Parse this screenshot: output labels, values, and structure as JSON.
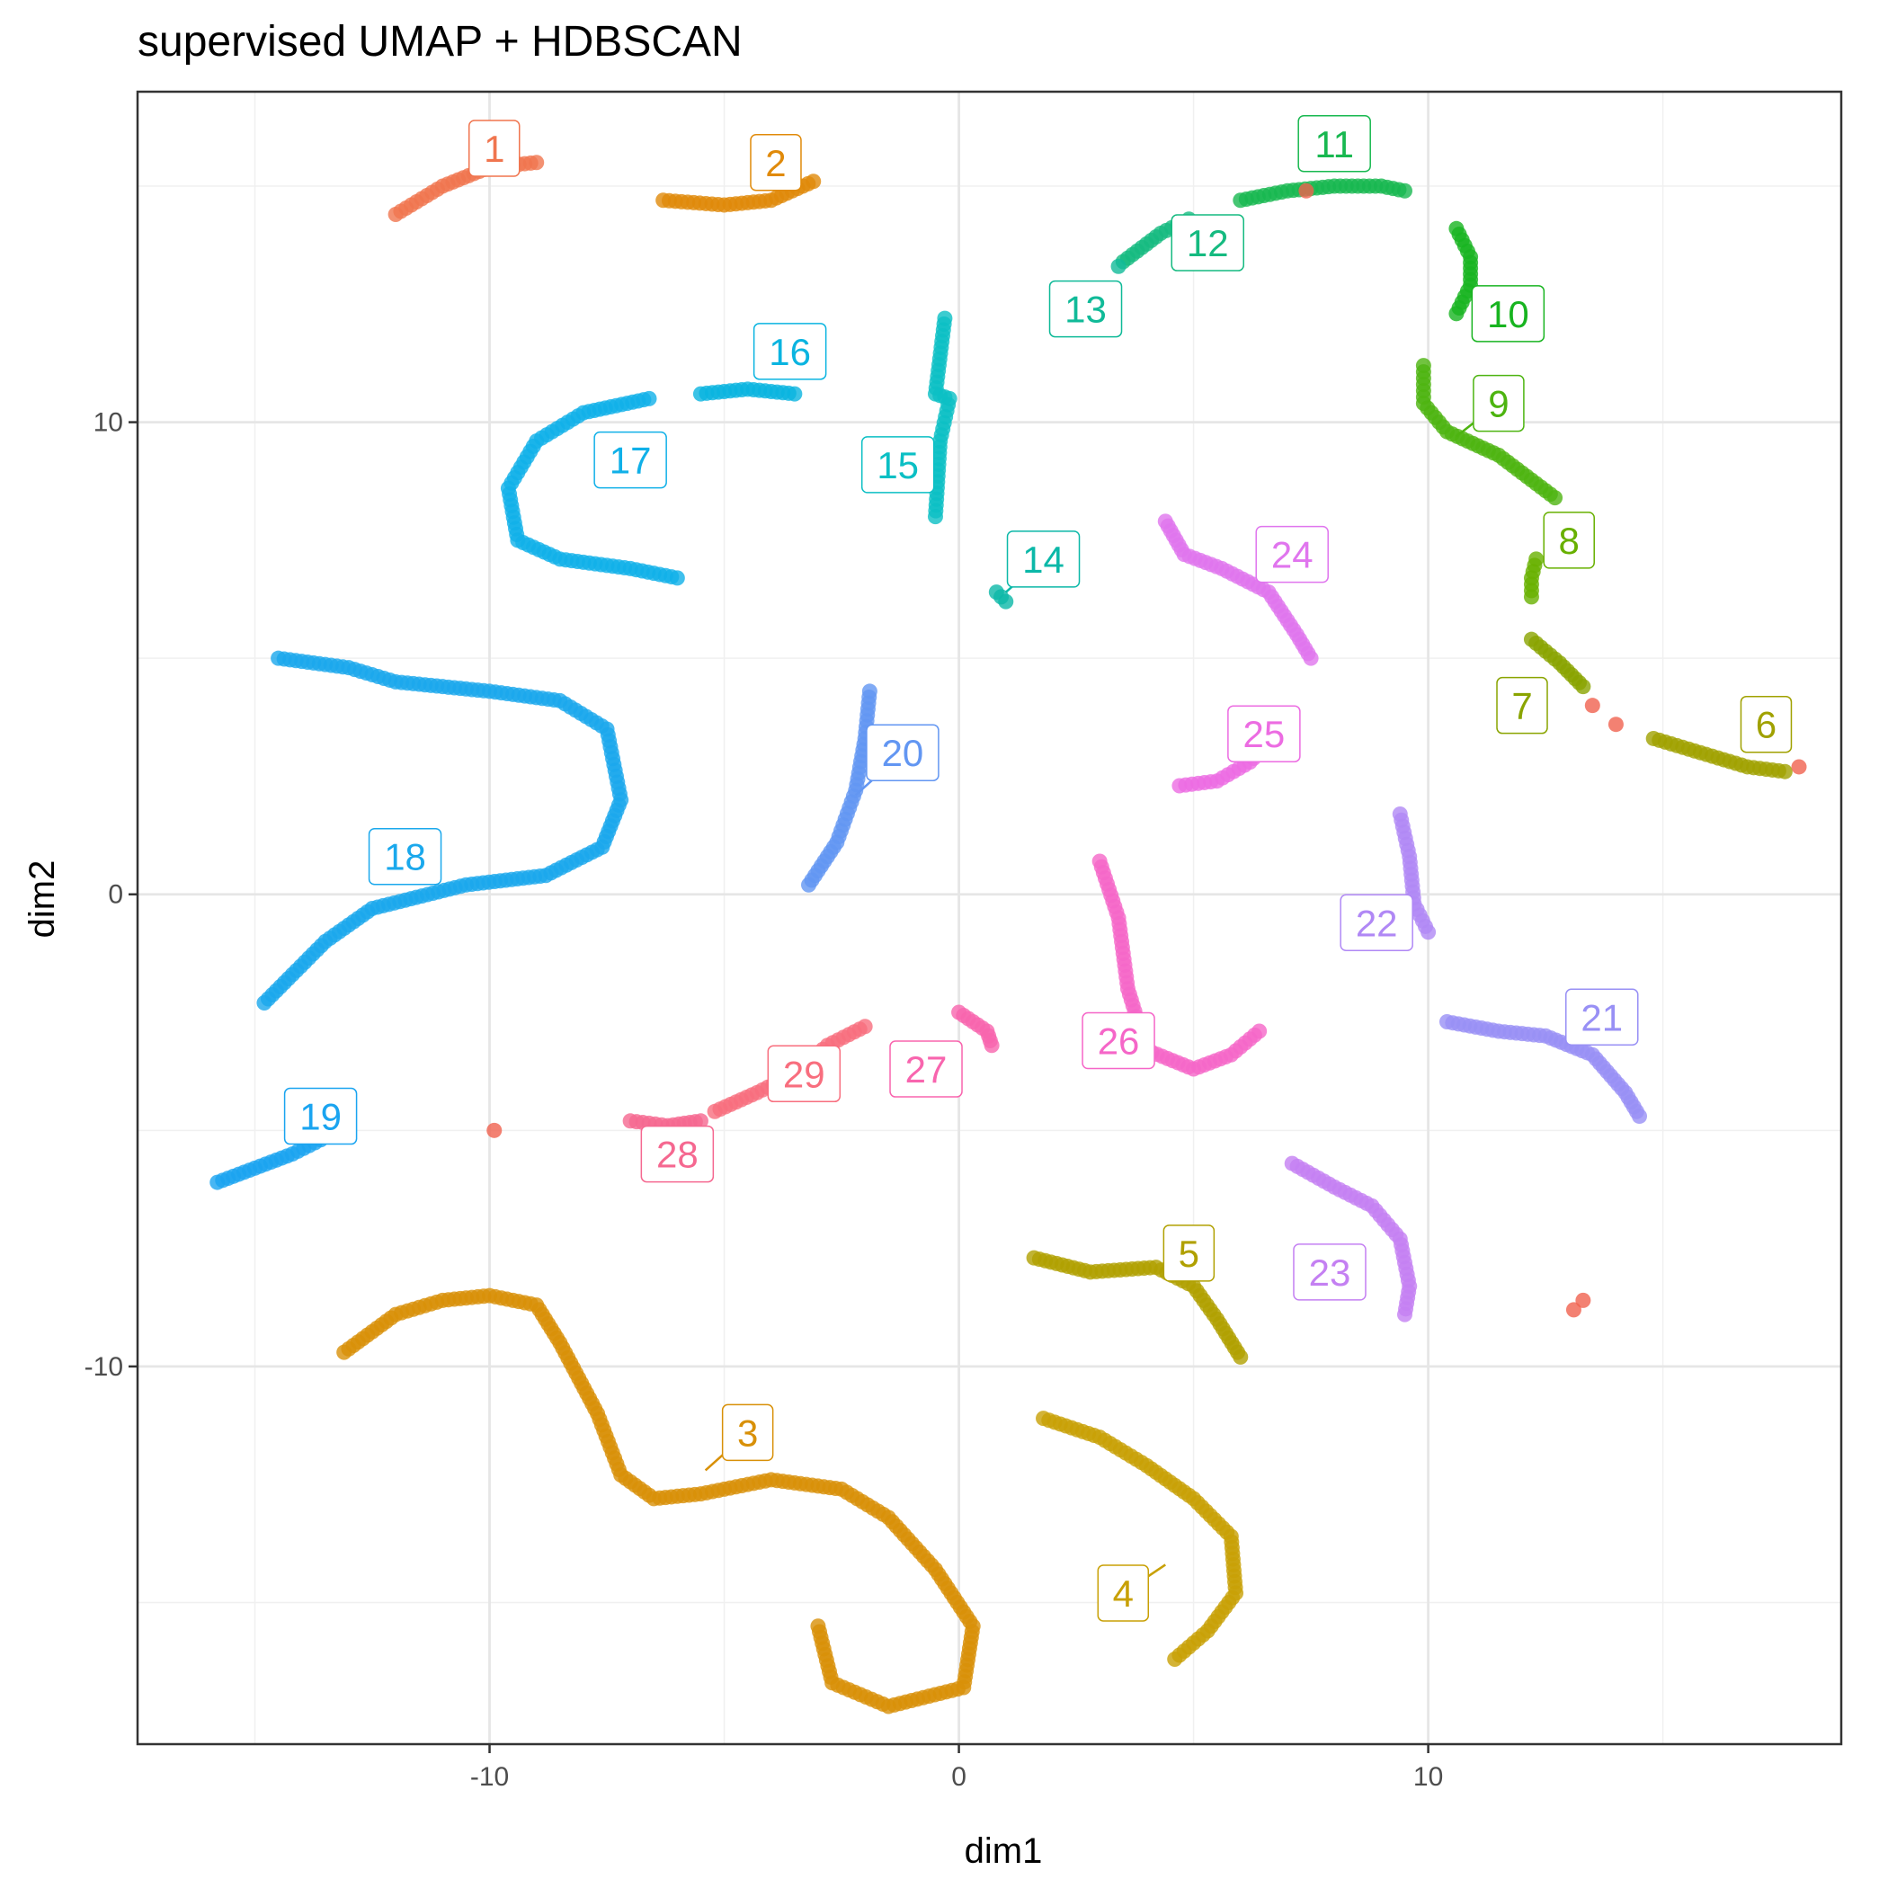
{
  "chart_data": {
    "type": "scatter",
    "title": "supervised UMAP + HDBSCAN",
    "xlabel": "dim1",
    "ylabel": "dim2",
    "xlim": [
      -17.5,
      18.8
    ],
    "ylim": [
      -18,
      17
    ],
    "x_ticks": [
      -10,
      0,
      10
    ],
    "x_tick_labels": [
      "-10",
      "0",
      "10"
    ],
    "y_ticks": [
      -10,
      0,
      10
    ],
    "y_tick_labels": [
      "-10",
      "0",
      "10"
    ],
    "x_minor_ticks": [
      -15,
      -5,
      5,
      15
    ],
    "y_minor_ticks": [
      -15,
      -5,
      5,
      15
    ],
    "grid": true,
    "legend": "none",
    "point_opacity": 0.8,
    "clusters": [
      {
        "label": "1",
        "color": "#F0754F",
        "label_pos": [
          -9.9,
          15.8
        ],
        "leader_to": null,
        "path": [
          [
            -12.0,
            14.4
          ],
          [
            -11.0,
            15.0
          ],
          [
            -10.0,
            15.4
          ],
          [
            -9.0,
            15.5
          ]
        ]
      },
      {
        "label": "2",
        "color": "#E08A0A",
        "label_pos": [
          -3.9,
          15.5
        ],
        "leader_to": null,
        "path": [
          [
            -6.3,
            14.7
          ],
          [
            -5.0,
            14.6
          ],
          [
            -4.0,
            14.7
          ],
          [
            -3.1,
            15.1
          ]
        ]
      },
      {
        "label": "3",
        "color": "#D89008",
        "label_pos": [
          -4.5,
          -11.4
        ],
        "leader_to": [
          -5.4,
          -12.2
        ],
        "path": [
          [
            -13.1,
            -9.7
          ],
          [
            -12.0,
            -8.9
          ],
          [
            -11.0,
            -8.6
          ],
          [
            -10.0,
            -8.5
          ],
          [
            -9.0,
            -8.7
          ],
          [
            -8.5,
            -9.5
          ],
          [
            -7.7,
            -11.0
          ],
          [
            -7.2,
            -12.3
          ],
          [
            -6.5,
            -12.8
          ],
          [
            -5.5,
            -12.7
          ],
          [
            -4.0,
            -12.4
          ],
          [
            -2.5,
            -12.6
          ],
          [
            -1.5,
            -13.2
          ],
          [
            -0.5,
            -14.3
          ],
          [
            0.3,
            -15.5
          ],
          [
            0.1,
            -16.8
          ],
          [
            -1.5,
            -17.2
          ],
          [
            -2.7,
            -16.7
          ],
          [
            -3.0,
            -15.5
          ]
        ]
      },
      {
        "label": "4",
        "color": "#C8A005",
        "label_pos": [
          3.5,
          -14.8
        ],
        "leader_to": [
          4.4,
          -14.2
        ],
        "path": [
          [
            1.8,
            -11.1
          ],
          [
            3.0,
            -11.5
          ],
          [
            4.0,
            -12.1
          ],
          [
            5.0,
            -12.8
          ],
          [
            5.8,
            -13.6
          ],
          [
            5.9,
            -14.8
          ],
          [
            5.3,
            -15.6
          ],
          [
            4.6,
            -16.2
          ]
        ]
      },
      {
        "label": "5",
        "color": "#B0A000",
        "label_pos": [
          4.9,
          -7.6
        ],
        "leader_to": null,
        "path": [
          [
            1.6,
            -7.7
          ],
          [
            2.8,
            -8.0
          ],
          [
            4.2,
            -7.9
          ],
          [
            5.0,
            -8.3
          ],
          [
            5.5,
            -9.0
          ],
          [
            6.0,
            -9.8
          ]
        ]
      },
      {
        "label": "6",
        "color": "#A0A100",
        "label_pos": [
          17.2,
          3.6
        ],
        "leader_to": null,
        "path": [
          [
            14.8,
            3.3
          ],
          [
            15.8,
            3.0
          ],
          [
            16.8,
            2.7
          ],
          [
            17.6,
            2.6
          ]
        ]
      },
      {
        "label": "7",
        "color": "#8AA400",
        "label_pos": [
          12.0,
          4.0
        ],
        "leader_to": null,
        "path": [
          [
            12.2,
            5.4
          ],
          [
            12.8,
            4.9
          ],
          [
            13.3,
            4.4
          ]
        ]
      },
      {
        "label": "8",
        "color": "#68B000",
        "label_pos": [
          13.0,
          7.5
        ],
        "leader_to": null,
        "path": [
          [
            12.2,
            6.3
          ],
          [
            12.2,
            6.7
          ],
          [
            12.3,
            7.1
          ]
        ]
      },
      {
        "label": "9",
        "color": "#4DB410",
        "label_pos": [
          11.5,
          10.4
        ],
        "leader_to": [
          10.6,
          9.7
        ],
        "path": [
          [
            9.9,
            11.2
          ],
          [
            9.9,
            10.4
          ],
          [
            10.4,
            9.8
          ],
          [
            11.5,
            9.3
          ],
          [
            12.3,
            8.7
          ],
          [
            12.7,
            8.4
          ]
        ]
      },
      {
        "label": "10",
        "color": "#18B420",
        "label_pos": [
          11.7,
          12.3
        ],
        "leader_to": null,
        "path": [
          [
            10.6,
            14.1
          ],
          [
            10.9,
            13.5
          ],
          [
            10.9,
            12.9
          ],
          [
            10.6,
            12.3
          ]
        ]
      },
      {
        "label": "11",
        "color": "#18B850",
        "label_pos": [
          8.0,
          15.9
        ],
        "leader_to": null,
        "path": [
          [
            6.0,
            14.7
          ],
          [
            7.0,
            14.9
          ],
          [
            8.0,
            15.0
          ],
          [
            9.0,
            15.0
          ],
          [
            9.5,
            14.9
          ]
        ]
      },
      {
        "label": "12",
        "color": "#15BA80",
        "label_pos": [
          5.3,
          13.8
        ],
        "leader_to": null,
        "path": [
          [
            3.5,
            13.4
          ],
          [
            4.3,
            14.0
          ],
          [
            4.9,
            14.3
          ]
        ]
      },
      {
        "label": "13",
        "color": "#10BA98",
        "label_pos": [
          2.7,
          12.4
        ],
        "leader_to": null,
        "path": [
          [
            3.4,
            13.3
          ]
        ]
      },
      {
        "label": "14",
        "color": "#0BB8A8",
        "label_pos": [
          1.8,
          7.1
        ],
        "leader_to": [
          1.0,
          6.4
        ],
        "path": [
          [
            0.8,
            6.4
          ],
          [
            1.0,
            6.2
          ]
        ]
      },
      {
        "label": "15",
        "color": "#0BBFC4",
        "label_pos": [
          -1.3,
          9.1
        ],
        "leader_to": null,
        "path": [
          [
            -0.3,
            12.2
          ],
          [
            -0.5,
            10.6
          ],
          [
            -0.2,
            10.5
          ],
          [
            -0.4,
            9.6
          ],
          [
            -0.5,
            8.0
          ]
        ]
      },
      {
        "label": "16",
        "color": "#0AB4E0",
        "label_pos": [
          -3.6,
          11.5
        ],
        "leader_to": null,
        "path": [
          [
            -5.5,
            10.6
          ],
          [
            -4.5,
            10.7
          ],
          [
            -3.5,
            10.6
          ]
        ]
      },
      {
        "label": "17",
        "color": "#10B0E8",
        "label_pos": [
          -7.0,
          9.2
        ],
        "leader_to": null,
        "path": [
          [
            -6.6,
            10.5
          ],
          [
            -8.0,
            10.2
          ],
          [
            -9.0,
            9.6
          ],
          [
            -9.6,
            8.6
          ],
          [
            -9.4,
            7.5
          ],
          [
            -8.5,
            7.1
          ],
          [
            -7.0,
            6.9
          ],
          [
            -6.0,
            6.7
          ]
        ]
      },
      {
        "label": "18",
        "color": "#1AA8EC",
        "label_pos": [
          -11.8,
          0.8
        ],
        "leader_to": null,
        "path": [
          [
            -14.5,
            5.0
          ],
          [
            -13.0,
            4.8
          ],
          [
            -12.0,
            4.5
          ],
          [
            -10.0,
            4.3
          ],
          [
            -8.5,
            4.1
          ],
          [
            -7.5,
            3.5
          ],
          [
            -7.2,
            2.0
          ],
          [
            -7.6,
            1.0
          ],
          [
            -8.8,
            0.4
          ],
          [
            -10.5,
            0.2
          ],
          [
            -12.5,
            -0.3
          ],
          [
            -13.5,
            -1.0
          ],
          [
            -14.2,
            -1.7
          ],
          [
            -14.8,
            -2.3
          ]
        ]
      },
      {
        "label": "19",
        "color": "#1AA4F0",
        "label_pos": [
          -13.6,
          -4.7
        ],
        "leader_to": null,
        "path": [
          [
            -15.8,
            -6.1
          ],
          [
            -15.0,
            -5.8
          ],
          [
            -14.2,
            -5.5
          ],
          [
            -13.6,
            -5.2
          ]
        ]
      },
      {
        "label": "20",
        "color": "#6296F2",
        "label_pos": [
          -1.2,
          3.0
        ],
        "leader_to": [
          -2.2,
          2.1
        ],
        "path": [
          [
            -1.9,
            4.3
          ],
          [
            -2.0,
            3.3
          ],
          [
            -2.2,
            2.2
          ],
          [
            -2.6,
            1.1
          ],
          [
            -3.2,
            0.2
          ]
        ]
      },
      {
        "label": "21",
        "color": "#9890F5",
        "label_pos": [
          13.7,
          -2.6
        ],
        "leader_to": null,
        "path": [
          [
            10.4,
            -2.7
          ],
          [
            11.5,
            -2.9
          ],
          [
            12.5,
            -3.0
          ],
          [
            13.5,
            -3.4
          ],
          [
            14.2,
            -4.2
          ],
          [
            14.5,
            -4.7
          ]
        ]
      },
      {
        "label": "22",
        "color": "#B088F5",
        "label_pos": [
          8.9,
          -0.6
        ],
        "leader_to": null,
        "path": [
          [
            9.4,
            1.7
          ],
          [
            9.6,
            0.8
          ],
          [
            9.7,
            -0.2
          ],
          [
            10.0,
            -0.8
          ]
        ]
      },
      {
        "label": "23",
        "color": "#C480F2",
        "label_pos": [
          7.9,
          -8.0
        ],
        "leader_to": null,
        "path": [
          [
            7.1,
            -5.7
          ],
          [
            8.0,
            -6.2
          ],
          [
            8.8,
            -6.6
          ],
          [
            9.4,
            -7.3
          ],
          [
            9.6,
            -8.3
          ],
          [
            9.5,
            -8.9
          ]
        ]
      },
      {
        "label": "24",
        "color": "#E075EE",
        "label_pos": [
          7.1,
          7.2
        ],
        "leader_to": null,
        "path": [
          [
            4.4,
            7.9
          ],
          [
            4.8,
            7.2
          ],
          [
            5.6,
            6.9
          ],
          [
            6.6,
            6.4
          ],
          [
            7.2,
            5.5
          ],
          [
            7.5,
            5.0
          ]
        ]
      },
      {
        "label": "25",
        "color": "#EC6CE2",
        "label_pos": [
          6.5,
          3.4
        ],
        "leader_to": null,
        "path": [
          [
            4.7,
            2.3
          ],
          [
            5.5,
            2.4
          ],
          [
            6.2,
            2.8
          ],
          [
            6.6,
            3.2
          ]
        ]
      },
      {
        "label": "26",
        "color": "#F566C8",
        "label_pos": [
          3.4,
          -3.1
        ],
        "leader_to": null,
        "path": [
          [
            3.0,
            0.7
          ],
          [
            3.4,
            -0.5
          ],
          [
            3.6,
            -2.0
          ],
          [
            4.0,
            -3.3
          ],
          [
            5.0,
            -3.7
          ],
          [
            5.8,
            -3.4
          ],
          [
            6.4,
            -2.9
          ]
        ]
      },
      {
        "label": "27",
        "color": "#F865AE",
        "label_pos": [
          -0.7,
          -3.7
        ],
        "leader_to": null,
        "path": [
          [
            0.0,
            -2.5
          ],
          [
            0.6,
            -2.9
          ],
          [
            0.7,
            -3.2
          ]
        ]
      },
      {
        "label": "28",
        "color": "#F56890",
        "label_pos": [
          -6.0,
          -5.5
        ],
        "leader_to": null,
        "path": [
          [
            -7.0,
            -4.8
          ],
          [
            -6.2,
            -4.9
          ],
          [
            -5.5,
            -4.8
          ]
        ]
      },
      {
        "label": "29",
        "color": "#F86E7E",
        "label_pos": [
          -3.3,
          -3.8
        ],
        "leader_to": null,
        "path": [
          [
            -5.2,
            -4.6
          ],
          [
            -4.3,
            -4.2
          ],
          [
            -3.5,
            -3.8
          ],
          [
            -2.8,
            -3.2
          ],
          [
            -2.0,
            -2.8
          ]
        ]
      }
    ],
    "noise": {
      "color": "#F0624F",
      "points": [
        [
          -9.9,
          -5.0
        ],
        [
          13.1,
          -8.8
        ],
        [
          13.3,
          -8.6
        ],
        [
          7.4,
          14.9
        ],
        [
          13.5,
          4.0
        ],
        [
          14.0,
          3.6
        ],
        [
          17.9,
          2.7
        ]
      ]
    }
  }
}
